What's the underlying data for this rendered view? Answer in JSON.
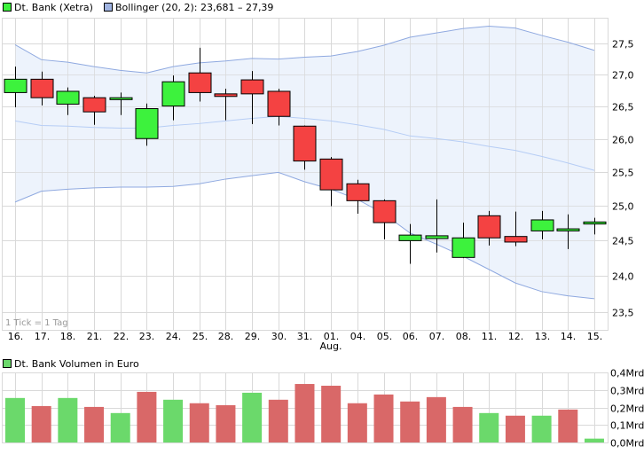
{
  "legend": {
    "price_label": "Dt. Bank (Xetra)",
    "bollinger_label": "Bollinger (20, 2): 23,681  – 27,39",
    "volume_label": "Dt. Bank Volumen in Euro"
  },
  "tick_note": "1 Tick = 1 Tag",
  "month_label": "Aug.",
  "colors": {
    "up": "#3df23d",
    "down": "#f44242",
    "band_fill": "#eaf1fc",
    "band_upper_lower": "#8fa9e0",
    "band_middle": "#b6cdf5",
    "vol_up": "#6bd96b",
    "vol_down": "#d96868"
  },
  "chart_data": [
    {
      "type": "candlestick",
      "yscale": "log",
      "ylim": [
        23.4,
        27.85
      ],
      "yticks": [
        "23,5",
        "24,0",
        "24,5",
        "25,0",
        "25,5",
        "26,0",
        "26,5",
        "27,0",
        "27,5"
      ],
      "ytick_values": [
        23.5,
        24.0,
        24.5,
        25.0,
        25.5,
        26.0,
        26.5,
        27.0,
        27.5
      ],
      "categories": [
        "16.",
        "17.",
        "18.",
        "21.",
        "22.",
        "23.",
        "24.",
        "25.",
        "28.",
        "29.",
        "30.",
        "31.",
        "01.",
        "04.",
        "05.",
        "06.",
        "07.",
        "08.",
        "11.",
        "12.",
        "13.",
        "14.",
        "15."
      ],
      "grid": true,
      "series": [
        {
          "name": "Dt. Bank (Xetra)",
          "open": [
            26.72,
            26.93,
            26.54,
            26.64,
            26.61,
            26.01,
            26.51,
            27.03,
            26.7,
            26.92,
            26.74,
            26.2,
            25.7,
            25.33,
            25.08,
            24.5,
            24.53,
            24.26,
            24.86,
            24.56,
            24.64,
            24.64,
            24.74
          ],
          "high": [
            27.13,
            27.05,
            26.8,
            26.67,
            26.72,
            26.55,
            26.99,
            27.43,
            26.78,
            27.06,
            26.78,
            26.21,
            25.73,
            25.39,
            25.1,
            24.74,
            25.1,
            24.76,
            24.93,
            24.92,
            24.93,
            24.88,
            24.83
          ],
          "low": [
            26.49,
            26.52,
            26.37,
            26.22,
            26.37,
            25.9,
            26.29,
            26.58,
            26.29,
            26.23,
            26.21,
            25.54,
            25.0,
            24.89,
            24.52,
            24.17,
            24.33,
            24.25,
            24.43,
            24.42,
            24.52,
            24.38,
            24.59
          ],
          "close": [
            26.93,
            26.64,
            26.74,
            26.42,
            26.64,
            26.47,
            26.89,
            26.72,
            26.66,
            26.7,
            26.35,
            25.67,
            25.24,
            25.08,
            24.76,
            24.58,
            24.57,
            24.54,
            24.54,
            24.48,
            24.8,
            24.67,
            24.77
          ]
        },
        {
          "name": "Bollinger (20, 2)",
          "upper": [
            27.48,
            27.24,
            27.2,
            27.13,
            27.07,
            27.03,
            27.13,
            27.19,
            27.22,
            27.26,
            27.25,
            27.28,
            27.3,
            27.37,
            27.47,
            27.6,
            27.67,
            27.74,
            27.78,
            27.75,
            27.63,
            27.52,
            27.39
          ],
          "middle": [
            26.28,
            26.21,
            26.2,
            26.18,
            26.17,
            26.17,
            26.21,
            26.24,
            26.28,
            26.32,
            26.35,
            26.32,
            26.28,
            26.22,
            26.15,
            26.05,
            26.01,
            25.96,
            25.89,
            25.83,
            25.74,
            25.64,
            25.53
          ],
          "lower": [
            25.06,
            25.22,
            25.25,
            25.27,
            25.28,
            25.28,
            25.29,
            25.33,
            25.4,
            25.45,
            25.5,
            25.36,
            25.25,
            25.1,
            24.89,
            24.61,
            24.45,
            24.28,
            24.09,
            23.9,
            23.78,
            23.72,
            23.68
          ]
        }
      ]
    },
    {
      "type": "bar",
      "ylim": [
        0,
        0.4
      ],
      "yticks": [
        "0,0Mrd",
        "0,1Mrd",
        "0,2Mrd",
        "0,3Mrd",
        "0,4Mrd"
      ],
      "ytick_values": [
        0,
        0.1,
        0.2,
        0.3,
        0.4
      ],
      "ylabel_unit": "Mrd",
      "series": [
        {
          "name": "Dt. Bank Volumen in Euro",
          "values": [
            0.254,
            0.208,
            0.254,
            0.203,
            0.168,
            0.289,
            0.244,
            0.224,
            0.213,
            0.284,
            0.244,
            0.334,
            0.324,
            0.224,
            0.274,
            0.234,
            0.259,
            0.203,
            0.168,
            0.153,
            0.153,
            0.188,
            0.022
          ],
          "direction": [
            "up",
            "down",
            "up",
            "down",
            "up",
            "down",
            "up",
            "down",
            "down",
            "up",
            "down",
            "down",
            "down",
            "down",
            "down",
            "down",
            "down",
            "down",
            "up",
            "down",
            "up",
            "down",
            "up"
          ]
        }
      ]
    }
  ]
}
